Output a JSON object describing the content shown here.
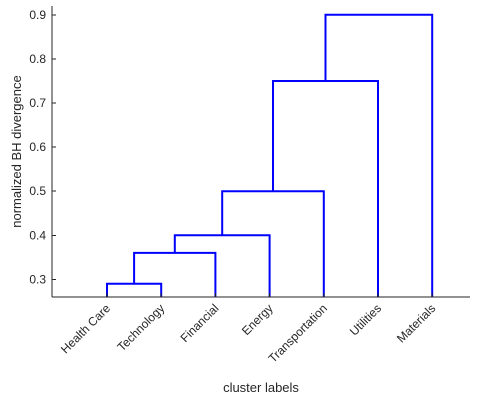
{
  "chart_data": {
    "type": "dendrogram",
    "xlabel": "cluster labels",
    "ylabel": "normalized BH divergence",
    "ylim": [
      0.26,
      0.92
    ],
    "yticks": [
      0.3,
      0.4,
      0.5,
      0.6,
      0.7,
      0.8,
      0.9
    ],
    "leaves": [
      "Health Care",
      "Technology",
      "Financial",
      "Energy",
      "Transportation",
      "Utilities",
      "Materials"
    ],
    "merges": [
      {
        "left": 1,
        "right": 2,
        "height": 0.29
      },
      {
        "left": 8,
        "right": 3,
        "height": 0.36
      },
      {
        "left": 9,
        "right": 4,
        "height": 0.4
      },
      {
        "left": 10,
        "right": 5,
        "height": 0.5
      },
      {
        "left": 11,
        "right": 6,
        "height": 0.75
      },
      {
        "left": 12,
        "right": 7,
        "height": 0.9
      }
    ],
    "link_color": "#0000ff",
    "axis_color": "#262626",
    "grid": false
  }
}
